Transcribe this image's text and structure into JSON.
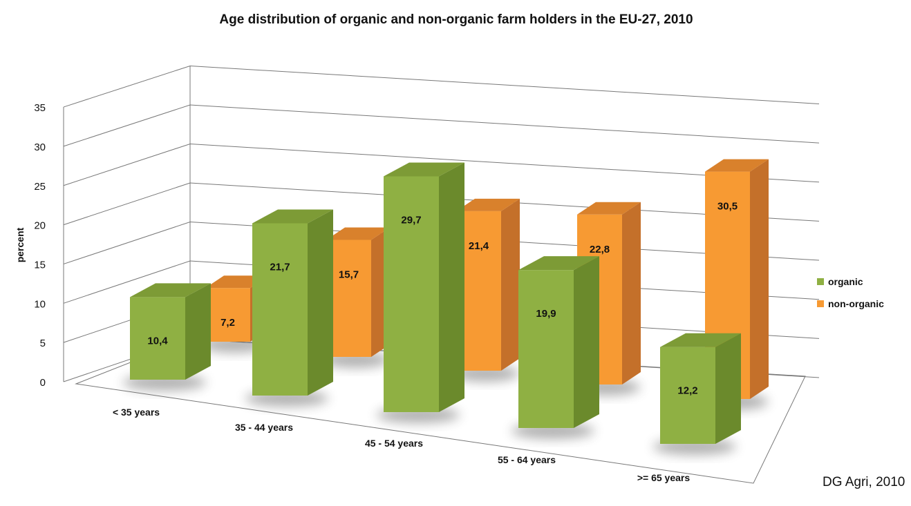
{
  "chart_data": {
    "type": "bar",
    "title": "Age distribution of organic and non-organic farm holders in the EU-27, 2010",
    "ylabel": "percent",
    "xlabel": "",
    "ylim": [
      0,
      35
    ],
    "yticks": [
      0,
      5,
      10,
      15,
      20,
      25,
      30,
      35
    ],
    "grid": true,
    "three_d": true,
    "legend_position": "right",
    "categories": [
      "< 35 years",
      "35 - 44 years",
      "45 - 54 years",
      "55 - 64 years",
      ">= 65 years"
    ],
    "series": [
      {
        "name": "organic",
        "values": [
          10.4,
          21.7,
          29.7,
          19.9,
          12.2
        ],
        "labels": [
          "10,4",
          "21,7",
          "29,7",
          "19,9",
          "12,2"
        ],
        "color": "#8fb043"
      },
      {
        "name": "non-organic",
        "values": [
          7.2,
          15.7,
          21.4,
          22.8,
          30.5
        ],
        "labels": [
          "7,2",
          "15,7",
          "21,4",
          "22,8",
          "30,5"
        ],
        "color": "#f79a33"
      }
    ],
    "source": "DG Agri, 2010"
  }
}
